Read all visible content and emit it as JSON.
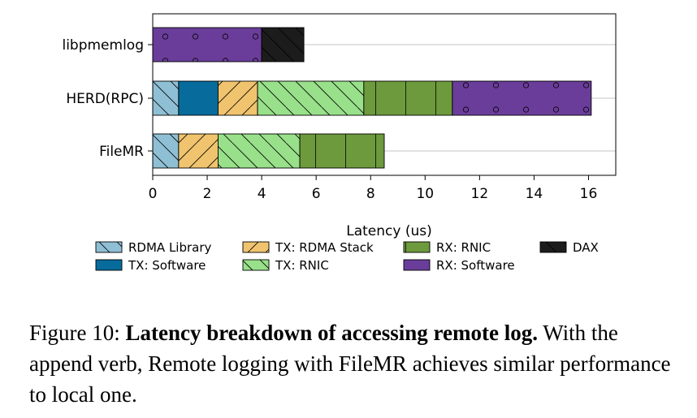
{
  "chart_data": {
    "type": "bar",
    "orientation": "horizontal",
    "stacked": true,
    "xlabel": "Latency (us)",
    "xlim": [
      0,
      17
    ],
    "xticks": [
      0,
      2,
      4,
      6,
      8,
      10,
      12,
      14,
      16
    ],
    "grid": "x-gridlines-horizontal",
    "categories": [
      "libpmemlog",
      "HERD(RPC)",
      "FileMR"
    ],
    "legend_position": "bottom",
    "series": [
      {
        "name": "RDMA Library",
        "color": "#8fbfd4",
        "hatch": "backslash",
        "values": [
          0,
          0.95,
          0.95
        ]
      },
      {
        "name": "TX: Software",
        "color": "#076b9c",
        "hatch": "none",
        "values": [
          0,
          1.45,
          0
        ]
      },
      {
        "name": "TX: RDMA Stack",
        "color": "#f0c36e",
        "hatch": "slash",
        "values": [
          0,
          1.45,
          1.45
        ]
      },
      {
        "name": "TX: RNIC",
        "color": "#98e08a",
        "hatch": "backslash",
        "values": [
          0,
          3.9,
          3.0
        ]
      },
      {
        "name": "RX: RNIC",
        "color": "#6d9a3c",
        "hatch": "vertical",
        "values": [
          0,
          3.25,
          3.1
        ]
      },
      {
        "name": "RX: Software",
        "color": "#6a3d9a",
        "hatch": "circles",
        "values": [
          4.0,
          5.1,
          0
        ]
      },
      {
        "name": "DAX",
        "color": "#1c1c1c",
        "hatch": "backslash",
        "values": [
          1.55,
          0,
          0
        ]
      }
    ]
  },
  "caption": {
    "label": "Figure 10:",
    "title": "Latency breakdown of accessing remote log.",
    "text": "With the append verb, Remote logging with FileMR achieves similar performance to local one."
  }
}
